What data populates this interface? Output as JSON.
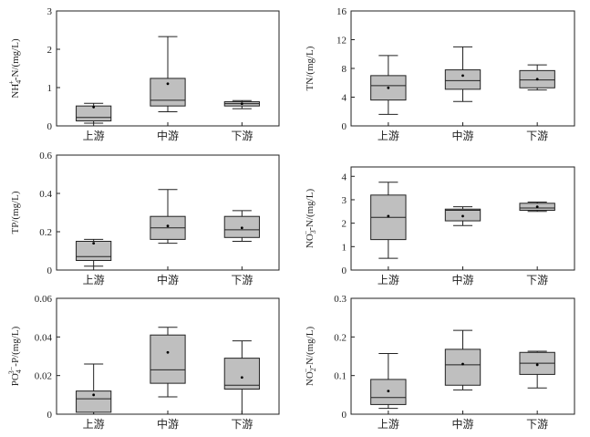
{
  "chart_data": [
    {
      "type": "box",
      "ylabel": "NH4+-N/(mg/L)",
      "ylabel_parts": {
        "pre": "NH",
        "sub": "4",
        "sup": "+",
        "post": "-N/(mg/L)"
      },
      "ylim": [
        0,
        3
      ],
      "yticks": [
        0,
        1,
        2,
        3
      ],
      "ytick_labels": [
        "0",
        "1",
        "2",
        "3"
      ],
      "categories": [
        "上游",
        "中游",
        "下游"
      ],
      "boxes": [
        {
          "min": 0.07,
          "q1": 0.13,
          "median": 0.22,
          "q3": 0.52,
          "max": 0.59,
          "mean": 0.49
        },
        {
          "min": 0.37,
          "q1": 0.52,
          "median": 0.67,
          "q3": 1.24,
          "max": 2.33,
          "mean": 1.1
        },
        {
          "min": 0.45,
          "q1": 0.52,
          "median": 0.58,
          "q3": 0.63,
          "max": 0.66,
          "mean": 0.58
        }
      ]
    },
    {
      "type": "box",
      "ylabel": "TN/(mg/L)",
      "ylabel_parts": {
        "pre": "TN/(mg/L)",
        "sub": "",
        "sup": "",
        "post": ""
      },
      "ylim": [
        0,
        16
      ],
      "yticks": [
        0,
        4,
        8,
        12,
        16
      ],
      "ytick_labels": [
        "0",
        "4",
        "8",
        "12",
        "16"
      ],
      "categories": [
        "上游",
        "中游",
        "下游"
      ],
      "boxes": [
        {
          "min": 1.6,
          "q1": 3.6,
          "median": 5.6,
          "q3": 7.0,
          "max": 9.8,
          "mean": 5.3
        },
        {
          "min": 3.4,
          "q1": 5.1,
          "median": 6.3,
          "q3": 7.8,
          "max": 11.0,
          "mean": 7.0
        },
        {
          "min": 5.0,
          "q1": 5.3,
          "median": 6.4,
          "q3": 7.7,
          "max": 8.5,
          "mean": 6.5
        }
      ]
    },
    {
      "type": "box",
      "ylabel": "TP/(mg/L)",
      "ylabel_parts": {
        "pre": "TP/(mg/L)",
        "sub": "",
        "sup": "",
        "post": ""
      },
      "ylim": [
        0,
        0.6
      ],
      "yticks": [
        0,
        0.2,
        0.4,
        0.6
      ],
      "ytick_labels": [
        "0",
        "0.2",
        "0.4",
        "0.6"
      ],
      "categories": [
        "上游",
        "中游",
        "下游"
      ],
      "boxes": [
        {
          "min": 0.02,
          "q1": 0.05,
          "median": 0.07,
          "q3": 0.15,
          "max": 0.16,
          "mean": 0.14
        },
        {
          "min": 0.14,
          "q1": 0.16,
          "median": 0.22,
          "q3": 0.28,
          "max": 0.42,
          "mean": 0.23
        },
        {
          "min": 0.15,
          "q1": 0.17,
          "median": 0.21,
          "q3": 0.28,
          "max": 0.31,
          "mean": 0.22
        }
      ]
    },
    {
      "type": "box",
      "ylabel": "NO3−-N/(mg/L)",
      "ylabel_parts": {
        "pre": "NO",
        "sub": "3",
        "sup": "−",
        "post": "-N/(mg/L)"
      },
      "ylim": [
        0,
        4.4
      ],
      "yticks": [
        0,
        1,
        2,
        3,
        4
      ],
      "ytick_labels": [
        "0",
        "1",
        "2",
        "3",
        "4"
      ],
      "categories": [
        "上游",
        "中游",
        "下游"
      ],
      "boxes": [
        {
          "min": 0.5,
          "q1": 1.3,
          "median": 2.25,
          "q3": 3.2,
          "max": 3.75,
          "mean": 2.3
        },
        {
          "min": 1.9,
          "q1": 2.1,
          "median": 2.55,
          "q3": 2.6,
          "max": 2.7,
          "mean": 2.3
        },
        {
          "min": 2.5,
          "q1": 2.55,
          "median": 2.65,
          "q3": 2.85,
          "max": 2.9,
          "mean": 2.7
        }
      ]
    },
    {
      "type": "box",
      "ylabel": "PO43−-P/(mg/L)",
      "ylabel_parts": {
        "pre": "PO",
        "sub": "4",
        "sup": "3−",
        "post": "-P/(mg/L)"
      },
      "ylim": [
        0,
        0.06
      ],
      "yticks": [
        0,
        0.02,
        0.04,
        0.06
      ],
      "ytick_labels": [
        "0",
        "0.02",
        "0.04",
        "0.06"
      ],
      "categories": [
        "上游",
        "中游",
        "下游"
      ],
      "boxes": [
        {
          "min": 0.0,
          "q1": 0.001,
          "median": 0.008,
          "q3": 0.012,
          "max": 0.026,
          "mean": 0.01
        },
        {
          "min": 0.009,
          "q1": 0.016,
          "median": 0.023,
          "q3": 0.041,
          "max": 0.045,
          "mean": 0.032
        },
        {
          "min": 0.0,
          "q1": 0.013,
          "median": 0.015,
          "q3": 0.029,
          "max": 0.038,
          "mean": 0.019
        }
      ]
    },
    {
      "type": "box",
      "ylabel": "NO2−-N/(mg/L)",
      "ylabel_parts": {
        "pre": "NO",
        "sub": "2",
        "sup": "−",
        "post": "-N/(mg/L)"
      },
      "ylim": [
        0,
        0.3
      ],
      "yticks": [
        0,
        0.1,
        0.2,
        0.3
      ],
      "ytick_labels": [
        "0",
        "0.1",
        "0.2",
        "0.3"
      ],
      "categories": [
        "上游",
        "中游",
        "下游"
      ],
      "boxes": [
        {
          "min": 0.015,
          "q1": 0.025,
          "median": 0.043,
          "q3": 0.09,
          "max": 0.157,
          "mean": 0.06
        },
        {
          "min": 0.063,
          "q1": 0.075,
          "median": 0.128,
          "q3": 0.168,
          "max": 0.217,
          "mean": 0.13
        },
        {
          "min": 0.068,
          "q1": 0.103,
          "median": 0.132,
          "q3": 0.16,
          "max": 0.163,
          "mean": 0.128
        }
      ]
    }
  ],
  "style": {
    "box_fill": "#bfbfbf",
    "line_color": "#222222",
    "axis_color": "#222222"
  }
}
